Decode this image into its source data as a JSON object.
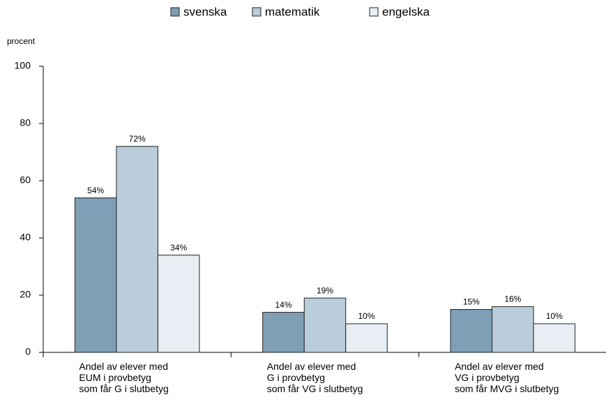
{
  "chart_data": {
    "type": "bar",
    "ylabel": "procent",
    "categories": [
      "Andel av elever med\nEUM i provbetyg\nsom får G i slutbetyg",
      "Andel av elever med\nG i provbetyg\nsom får VG i slutbetyg",
      "Andel av elever med\nVG i provbetyg\nsom får MVG i slutbetyg"
    ],
    "series": [
      {
        "name": "svenska",
        "color": "#7f9fb6",
        "values": [
          54,
          14,
          15
        ],
        "value_labels": [
          "54%",
          "14%",
          "15%"
        ]
      },
      {
        "name": "matematik",
        "color": "#b9cddb",
        "values": [
          72,
          19,
          16
        ],
        "value_labels": [
          "72%",
          "19%",
          "16%"
        ]
      },
      {
        "name": "engelska",
        "color": "#e8eef3",
        "values": [
          34,
          10,
          10
        ],
        "value_labels": [
          "34%",
          "10%",
          "10%"
        ]
      }
    ],
    "ylim": [
      0,
      100
    ],
    "yticks": [
      0,
      20,
      40,
      60,
      80,
      100
    ],
    "grid": false,
    "legend": "top"
  }
}
